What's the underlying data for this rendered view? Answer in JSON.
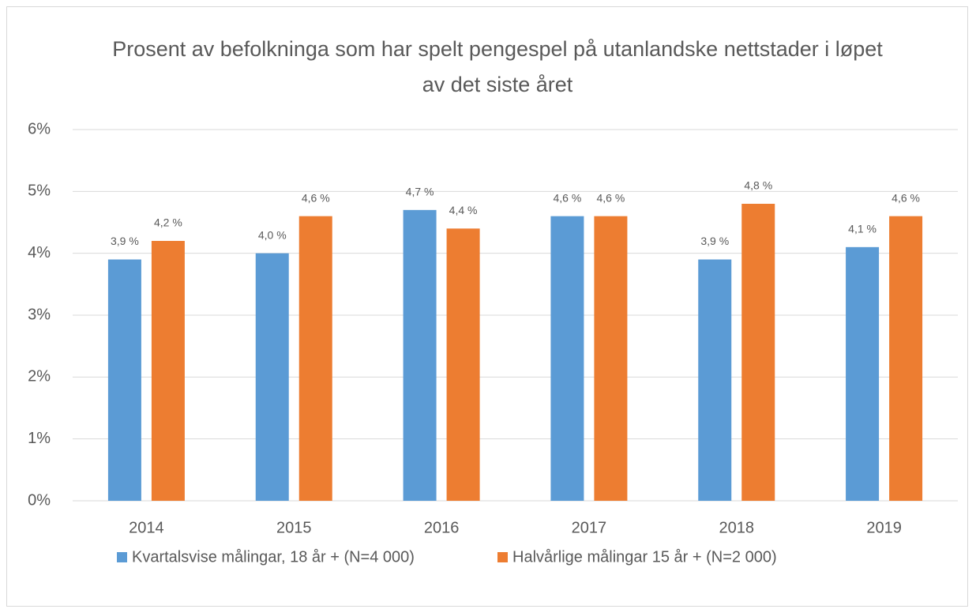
{
  "chart_data": {
    "type": "bar",
    "title": "Prosent av befolkninga som har spelt pengespel på utanlandske nettstader i løpet av det siste året",
    "categories": [
      "2014",
      "2015",
      "2016",
      "2017",
      "2018",
      "2019"
    ],
    "series": [
      {
        "name": "Kvartalsvise målingar, 18 år + (N=4 000)",
        "color": "#5b9bd5",
        "values": [
          3.9,
          4.0,
          4.7,
          4.6,
          3.9,
          4.1
        ],
        "value_labels": [
          "3,9 %",
          "4,0 %",
          "4,7 %",
          "4,6 %",
          "3,9 %",
          "4,1 %"
        ]
      },
      {
        "name": "Halvårlige målingar 15 år + (N=2 000)",
        "color": "#ed7d31",
        "values": [
          4.2,
          4.6,
          4.4,
          4.6,
          4.8,
          4.6
        ],
        "value_labels": [
          "4,2 %",
          "4,6 %",
          "4,4 %",
          "4,6 %",
          "4,8 %",
          "4,6 %"
        ]
      }
    ],
    "ylim": [
      0,
      6
    ],
    "yticks": [
      {
        "value": 0,
        "label": "0%"
      },
      {
        "value": 1,
        "label": "1%"
      },
      {
        "value": 2,
        "label": "2%"
      },
      {
        "value": 3,
        "label": "3%"
      },
      {
        "value": 4,
        "label": "4%"
      },
      {
        "value": 5,
        "label": "5%"
      },
      {
        "value": 6,
        "label": "6%"
      }
    ],
    "grid": true,
    "legend": "bottom"
  }
}
